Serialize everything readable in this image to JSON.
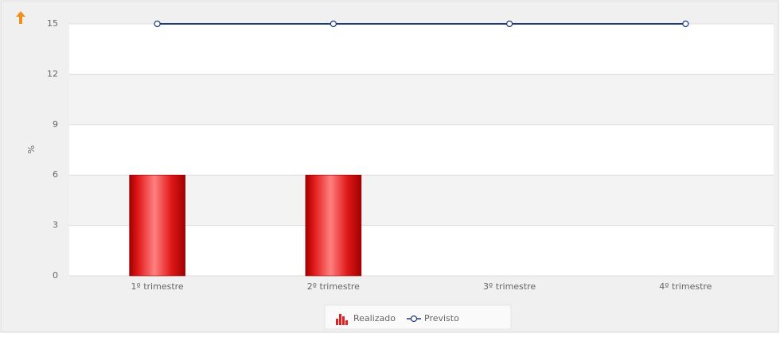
{
  "chart_data": {
    "type": "bar",
    "categories": [
      "1º trimestre",
      "2º trimestre",
      "3º trimestre",
      "4º trimestre"
    ],
    "series": [
      {
        "name": "Realizado",
        "type": "bar",
        "color": "#e02020",
        "values": [
          6,
          6,
          null,
          null
        ]
      },
      {
        "name": "Previsto",
        "type": "line",
        "color": "#1f3a7a",
        "values": [
          15,
          15,
          15,
          15
        ]
      }
    ],
    "y_label": "%",
    "ylim": [
      0,
      15
    ],
    "yticks": [
      0,
      3,
      6,
      9,
      12,
      15
    ],
    "grid": true
  }
}
